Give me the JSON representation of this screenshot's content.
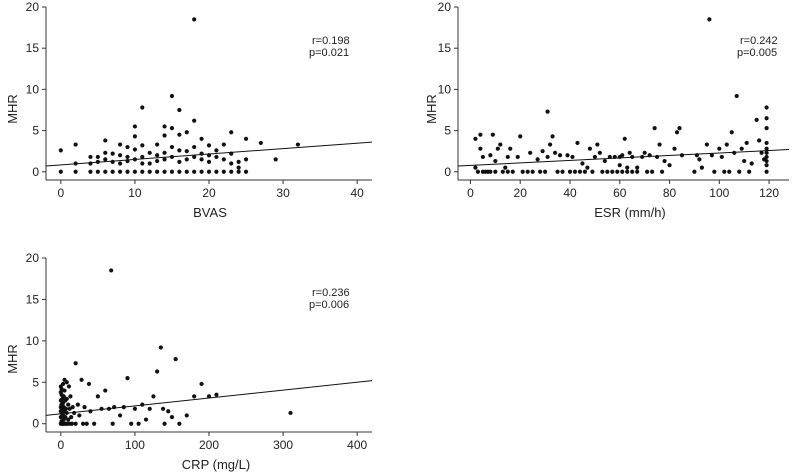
{
  "chart_data": [
    {
      "type": "scatter",
      "xlabel": "BVAS",
      "ylabel": "MHR",
      "xlim": [
        -2,
        42
      ],
      "ylim": [
        -1,
        20
      ],
      "xticks": [
        "0",
        "10",
        "20",
        "30",
        "40"
      ],
      "yticks": [
        "0",
        "5",
        "10",
        "15",
        "20"
      ],
      "stats": {
        "r": "r=0.198",
        "p": "p=0.021"
      },
      "fit": {
        "x0": -2,
        "y0": 0.7,
        "x1": 42,
        "y1": 3.6
      },
      "points": [
        [
          0,
          2.6
        ],
        [
          0,
          0
        ],
        [
          2,
          3.3
        ],
        [
          2,
          1.0
        ],
        [
          2,
          0
        ],
        [
          4,
          1.8
        ],
        [
          4,
          1.0
        ],
        [
          4,
          0
        ],
        [
          5,
          1.8
        ],
        [
          5,
          1.2
        ],
        [
          5,
          0
        ],
        [
          6,
          3.8
        ],
        [
          6,
          2.3
        ],
        [
          6,
          1.5
        ],
        [
          6,
          0
        ],
        [
          7,
          2.2
        ],
        [
          7,
          1.2
        ],
        [
          7,
          0
        ],
        [
          8,
          3.3
        ],
        [
          8,
          2.0
        ],
        [
          8,
          1.0
        ],
        [
          8,
          0
        ],
        [
          9,
          3.0
        ],
        [
          9,
          1.8
        ],
        [
          9,
          1.3
        ],
        [
          9,
          0
        ],
        [
          10,
          5.5
        ],
        [
          10,
          4.3
        ],
        [
          10,
          2.7
        ],
        [
          10,
          1.5
        ],
        [
          10,
          0
        ],
        [
          11,
          7.8
        ],
        [
          11,
          3.2
        ],
        [
          11,
          1.8
        ],
        [
          11,
          1.0
        ],
        [
          11,
          0
        ],
        [
          12,
          2.3
        ],
        [
          12,
          1.0
        ],
        [
          12,
          0
        ],
        [
          13,
          3.3
        ],
        [
          13,
          2.0
        ],
        [
          13,
          1.3
        ],
        [
          13,
          0
        ],
        [
          14,
          5.5
        ],
        [
          14,
          4.4
        ],
        [
          14,
          2.3
        ],
        [
          14,
          1.5
        ],
        [
          14,
          0
        ],
        [
          15,
          9.2
        ],
        [
          15,
          5.3
        ],
        [
          15,
          3.0
        ],
        [
          15,
          1.8
        ],
        [
          15,
          0
        ],
        [
          16,
          7.5
        ],
        [
          16,
          4.5
        ],
        [
          16,
          2.6
        ],
        [
          16,
          1.2
        ],
        [
          16,
          0
        ],
        [
          17,
          4.8
        ],
        [
          17,
          2.5
        ],
        [
          17,
          1.5
        ],
        [
          17,
          0
        ],
        [
          18,
          18.5
        ],
        [
          18,
          6.2
        ],
        [
          18,
          3.0
        ],
        [
          18,
          1.8
        ],
        [
          18,
          0
        ],
        [
          19,
          4.0
        ],
        [
          19,
          2.2
        ],
        [
          19,
          1.5
        ],
        [
          19,
          0
        ],
        [
          20,
          3.2
        ],
        [
          20,
          2.0
        ],
        [
          20,
          1.2
        ],
        [
          20,
          0
        ],
        [
          21,
          2.6
        ],
        [
          21,
          1.8
        ],
        [
          21,
          0
        ],
        [
          22,
          3.3
        ],
        [
          22,
          1.5
        ],
        [
          22,
          0
        ],
        [
          23,
          4.8
        ],
        [
          23,
          2.2
        ],
        [
          23,
          1.0
        ],
        [
          23,
          0
        ],
        [
          24,
          1.2
        ],
        [
          24,
          0.5
        ],
        [
          24,
          0
        ],
        [
          25,
          4.0
        ],
        [
          25,
          1.5
        ],
        [
          25,
          0
        ],
        [
          27,
          3.5
        ],
        [
          29,
          1.5
        ],
        [
          32,
          3.3
        ]
      ]
    },
    {
      "type": "scatter",
      "xlabel": "ESR (mm/h)",
      "ylabel": "MHR",
      "xlim": [
        -5,
        128
      ],
      "ylim": [
        -1,
        20
      ],
      "xticks": [
        "0",
        "20",
        "40",
        "60",
        "80",
        "100",
        "120"
      ],
      "yticks": [
        "0",
        "5",
        "10",
        "15",
        "20"
      ],
      "stats": {
        "r": "r=0.242",
        "p": "p=0.005"
      },
      "fit": {
        "x0": -5,
        "y0": 0.7,
        "x1": 128,
        "y1": 2.7
      },
      "points": [
        [
          2,
          4.0
        ],
        [
          2,
          0.5
        ],
        [
          3,
          0
        ],
        [
          4,
          4.5
        ],
        [
          4,
          2.8
        ],
        [
          5,
          1.8
        ],
        [
          5,
          0
        ],
        [
          6,
          0
        ],
        [
          7,
          0
        ],
        [
          8,
          2.0
        ],
        [
          8,
          0
        ],
        [
          9,
          4.5
        ],
        [
          10,
          1.3
        ],
        [
          10,
          0
        ],
        [
          11,
          2.8
        ],
        [
          12,
          3.3
        ],
        [
          13,
          0
        ],
        [
          14,
          0.5
        ],
        [
          15,
          1.8
        ],
        [
          15,
          0
        ],
        [
          16,
          2.8
        ],
        [
          17,
          0
        ],
        [
          19,
          1.8
        ],
        [
          20,
          4.3
        ],
        [
          21,
          0
        ],
        [
          23,
          0
        ],
        [
          24,
          2.3
        ],
        [
          25,
          0
        ],
        [
          27,
          1.5
        ],
        [
          28,
          0
        ],
        [
          29,
          2.5
        ],
        [
          30,
          0
        ],
        [
          31,
          7.3
        ],
        [
          31,
          1.8
        ],
        [
          32,
          3.3
        ],
        [
          33,
          4.3
        ],
        [
          34,
          2.3
        ],
        [
          35,
          0
        ],
        [
          36,
          2.0
        ],
        [
          37,
          0
        ],
        [
          39,
          2.0
        ],
        [
          40,
          0
        ],
        [
          41,
          1.8
        ],
        [
          42,
          0
        ],
        [
          43,
          3.5
        ],
        [
          44,
          0
        ],
        [
          45,
          1.0
        ],
        [
          46,
          0
        ],
        [
          47,
          0.5
        ],
        [
          48,
          2.8
        ],
        [
          49,
          0
        ],
        [
          50,
          1.8
        ],
        [
          51,
          3.3
        ],
        [
          52,
          2.3
        ],
        [
          53,
          0
        ],
        [
          54,
          1.3
        ],
        [
          55,
          0
        ],
        [
          56,
          1.8
        ],
        [
          57,
          0
        ],
        [
          58,
          1.8
        ],
        [
          59,
          0
        ],
        [
          60,
          1.8
        ],
        [
          60,
          0.8
        ],
        [
          61,
          2.0
        ],
        [
          61,
          0
        ],
        [
          62,
          4.0
        ],
        [
          63,
          0.5
        ],
        [
          63,
          0
        ],
        [
          64,
          2.3
        ],
        [
          65,
          1.8
        ],
        [
          65,
          0
        ],
        [
          67,
          0.5
        ],
        [
          67,
          0
        ],
        [
          69,
          1.8
        ],
        [
          70,
          2.3
        ],
        [
          71,
          0
        ],
        [
          72,
          2.0
        ],
        [
          73,
          0
        ],
        [
          74,
          5.3
        ],
        [
          75,
          1.8
        ],
        [
          76,
          3.3
        ],
        [
          77,
          0
        ],
        [
          78,
          1.3
        ],
        [
          80,
          0.8
        ],
        [
          82,
          2.8
        ],
        [
          83,
          4.8
        ],
        [
          84,
          5.3
        ],
        [
          85,
          2.0
        ],
        [
          90,
          0
        ],
        [
          91,
          2.0
        ],
        [
          92,
          1.5
        ],
        [
          93,
          0.5
        ],
        [
          95,
          3.3
        ],
        [
          96,
          18.5
        ],
        [
          97,
          2.0
        ],
        [
          98,
          0
        ],
        [
          100,
          2.8
        ],
        [
          101,
          1.8
        ],
        [
          102,
          0
        ],
        [
          103,
          3.3
        ],
        [
          104,
          0
        ],
        [
          105,
          4.8
        ],
        [
          106,
          2.3
        ],
        [
          107,
          9.2
        ],
        [
          108,
          0
        ],
        [
          109,
          2.8
        ],
        [
          110,
          1.3
        ],
        [
          111,
          3.5
        ],
        [
          112,
          0
        ],
        [
          113,
          1.0
        ],
        [
          115,
          6.3
        ],
        [
          116,
          3.8
        ],
        [
          117,
          2.3
        ],
        [
          118,
          1.5
        ],
        [
          119,
          7.8
        ],
        [
          119,
          6.5
        ],
        [
          119,
          5.3
        ],
        [
          119,
          3.5
        ],
        [
          119,
          2.8
        ],
        [
          119,
          2.3
        ],
        [
          119,
          1.8
        ],
        [
          119,
          1.3
        ],
        [
          119,
          0.8
        ],
        [
          119,
          0
        ]
      ]
    },
    {
      "type": "scatter",
      "xlabel": "CRP (mg/L)",
      "ylabel": "MHR",
      "xlim": [
        -20,
        420
      ],
      "ylim": [
        -1,
        20
      ],
      "xticks": [
        "0",
        "100",
        "200",
        "300",
        "400"
      ],
      "yticks": [
        "0",
        "5",
        "10",
        "15",
        "20"
      ],
      "stats": {
        "r": "r=0.236",
        "p": "p=0.006"
      },
      "fit": {
        "x0": -20,
        "y0": 1.0,
        "x1": 420,
        "y1": 5.2
      },
      "points": [
        [
          0,
          4.5
        ],
        [
          0,
          3.8
        ],
        [
          0,
          2.8
        ],
        [
          0,
          2.0
        ],
        [
          0,
          1.5
        ],
        [
          0,
          0.8
        ],
        [
          0,
          0
        ],
        [
          1,
          4.2
        ],
        [
          1,
          3.5
        ],
        [
          1,
          2.3
        ],
        [
          1,
          1.3
        ],
        [
          1,
          0.3
        ],
        [
          2,
          3.0
        ],
        [
          2,
          1.8
        ],
        [
          2,
          0
        ],
        [
          3,
          4.8
        ],
        [
          3,
          2.5
        ],
        [
          3,
          1.0
        ],
        [
          3,
          0
        ],
        [
          4,
          3.3
        ],
        [
          4,
          2.0
        ],
        [
          4,
          0.5
        ],
        [
          5,
          5.3
        ],
        [
          5,
          4.0
        ],
        [
          5,
          1.5
        ],
        [
          5,
          0
        ],
        [
          6,
          2.8
        ],
        [
          6,
          0.8
        ],
        [
          7,
          1.8
        ],
        [
          7,
          0
        ],
        [
          8,
          5.0
        ],
        [
          8,
          3.0
        ],
        [
          8,
          1.3
        ],
        [
          9,
          0
        ],
        [
          10,
          2.3
        ],
        [
          10,
          0.5
        ],
        [
          11,
          4.5
        ],
        [
          12,
          1.8
        ],
        [
          12,
          0
        ],
        [
          13,
          3.3
        ],
        [
          14,
          0.8
        ],
        [
          15,
          0
        ],
        [
          16,
          2.0
        ],
        [
          18,
          1.3
        ],
        [
          20,
          0
        ],
        [
          20,
          7.3
        ],
        [
          23,
          2.3
        ],
        [
          25,
          1.0
        ],
        [
          28,
          5.3
        ],
        [
          30,
          0
        ],
        [
          32,
          2.0
        ],
        [
          35,
          0
        ],
        [
          38,
          4.8
        ],
        [
          40,
          1.5
        ],
        [
          45,
          0
        ],
        [
          50,
          3.3
        ],
        [
          55,
          1.8
        ],
        [
          60,
          4.0
        ],
        [
          65,
          1.8
        ],
        [
          68,
          18.5
        ],
        [
          70,
          0
        ],
        [
          72,
          2.0
        ],
        [
          80,
          1.0
        ],
        [
          85,
          2.0
        ],
        [
          90,
          5.5
        ],
        [
          95,
          0
        ],
        [
          100,
          1.8
        ],
        [
          105,
          0
        ],
        [
          110,
          2.3
        ],
        [
          115,
          0.5
        ],
        [
          120,
          1.8
        ],
        [
          125,
          3.3
        ],
        [
          130,
          6.3
        ],
        [
          135,
          9.2
        ],
        [
          138,
          1.8
        ],
        [
          140,
          0
        ],
        [
          145,
          1.5
        ],
        [
          150,
          0.8
        ],
        [
          155,
          7.8
        ],
        [
          160,
          0
        ],
        [
          170,
          1.0
        ],
        [
          180,
          3.3
        ],
        [
          190,
          4.8
        ],
        [
          200,
          3.3
        ],
        [
          210,
          3.5
        ],
        [
          310,
          1.3
        ]
      ]
    }
  ]
}
